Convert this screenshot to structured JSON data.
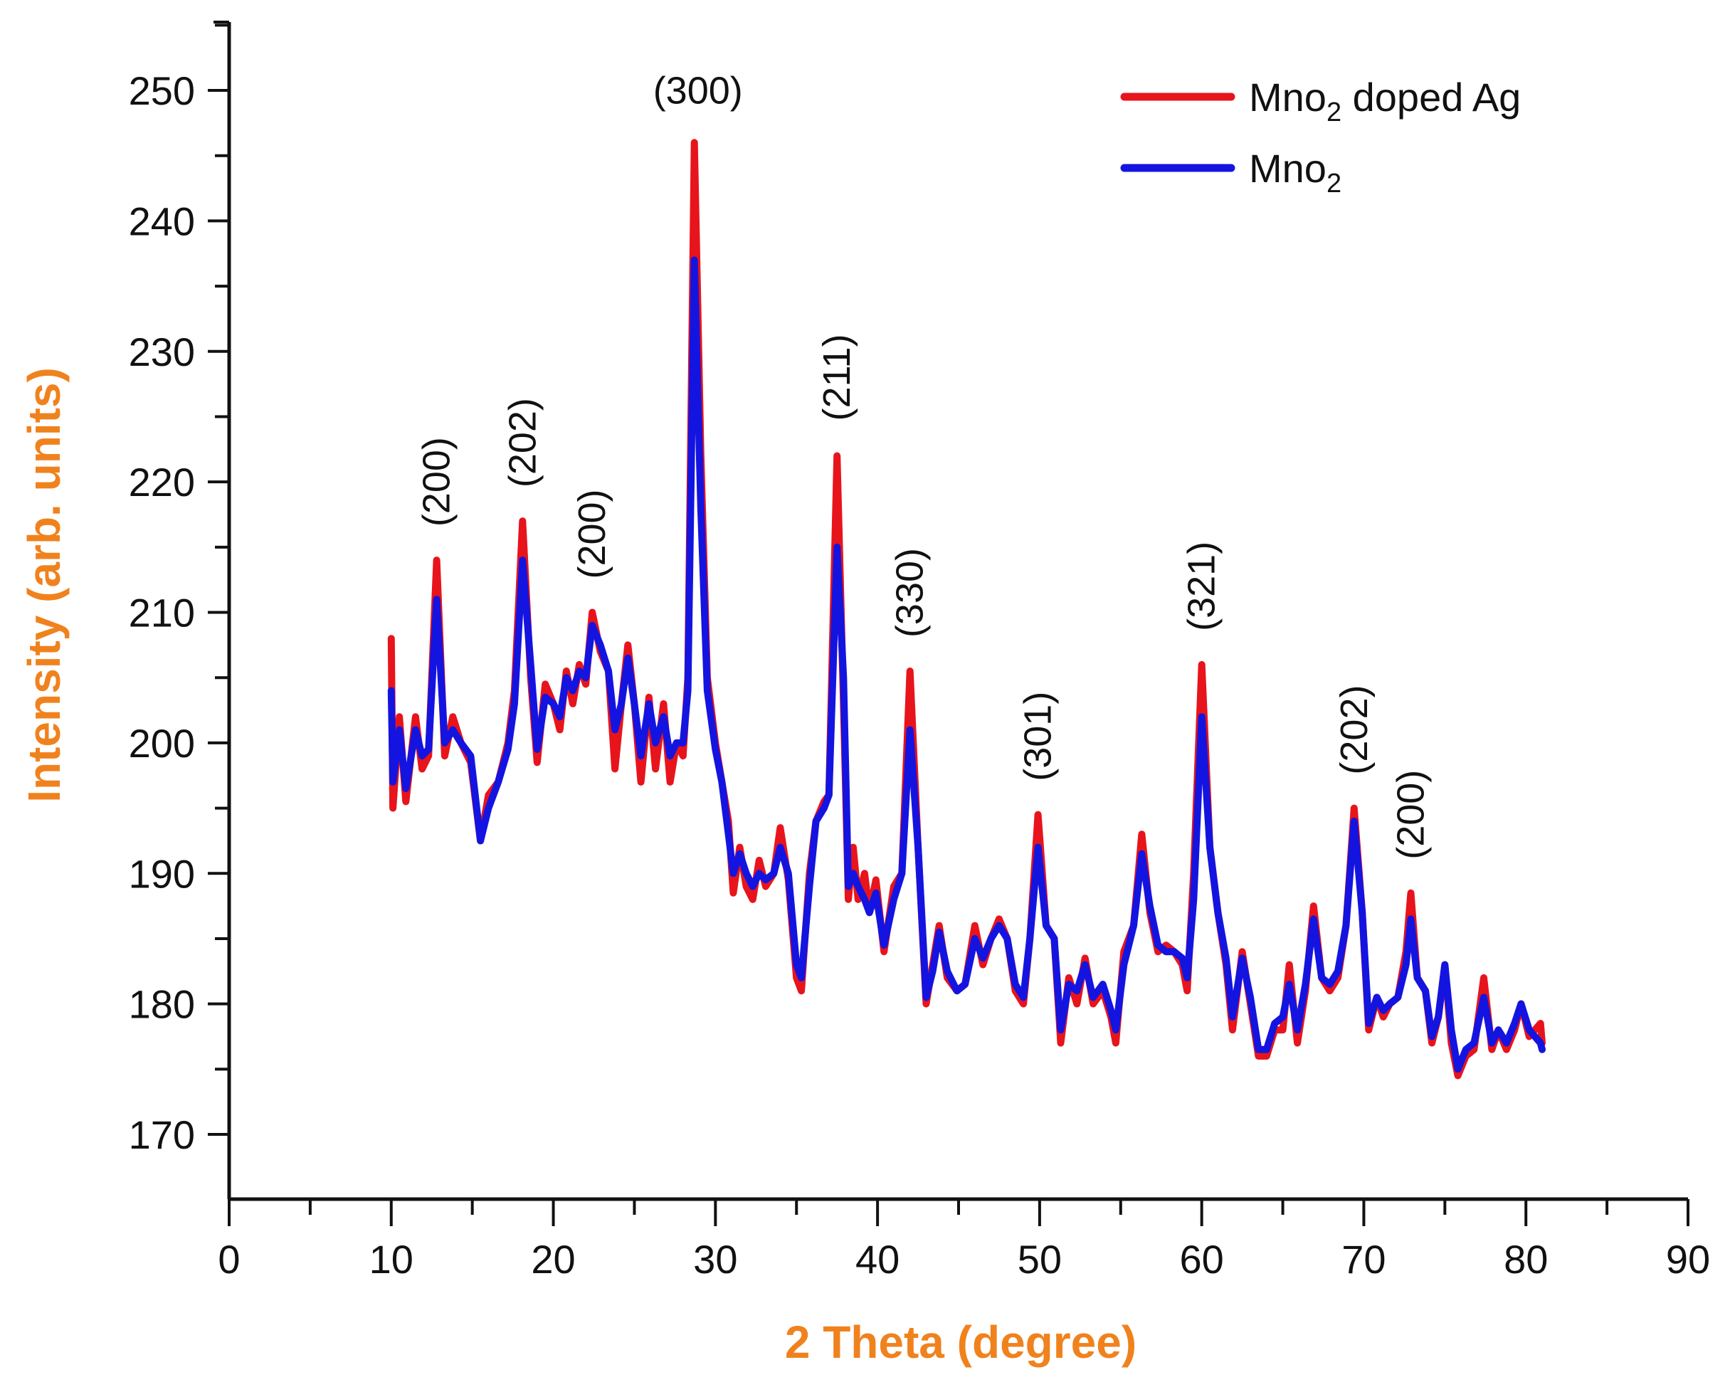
{
  "chart_data": {
    "type": "line",
    "xlabel": "2 Theta (degree)",
    "ylabel": "Intensity (arb. units)",
    "xlim": [
      0,
      90
    ],
    "ylim": [
      165,
      255
    ],
    "xticks": [
      0,
      10,
      20,
      30,
      40,
      50,
      60,
      70,
      80,
      90
    ],
    "yticks": [
      170,
      180,
      190,
      200,
      210,
      220,
      230,
      240,
      250
    ],
    "grid": false,
    "legend_position": "top-right",
    "axis_title_color": "#f0821e",
    "x": [
      10.0,
      10.1,
      10.5,
      10.9,
      11.5,
      11.9,
      12.3,
      12.8,
      13.3,
      13.8,
      14.3,
      14.9,
      15.5,
      16.0,
      16.6,
      17.2,
      17.6,
      18.1,
      18.6,
      19.0,
      19.5,
      20.0,
      20.4,
      20.8,
      21.2,
      21.6,
      22.0,
      22.4,
      22.9,
      23.4,
      23.8,
      24.2,
      24.6,
      25.0,
      25.4,
      25.9,
      26.3,
      26.8,
      27.2,
      27.6,
      28.0,
      28.3,
      28.7,
      29.1,
      29.5,
      30.0,
      30.4,
      30.8,
      31.1,
      31.5,
      31.9,
      32.3,
      32.7,
      33.1,
      33.6,
      34.0,
      34.5,
      35.0,
      35.3,
      35.8,
      36.2,
      36.7,
      37.0,
      37.5,
      37.9,
      38.2,
      38.5,
      38.8,
      39.2,
      39.5,
      39.9,
      40.4,
      41.0,
      41.5,
      42.0,
      42.5,
      43.0,
      43.4,
      43.8,
      44.3,
      44.9,
      45.4,
      46.0,
      46.5,
      47.0,
      47.5,
      48.0,
      48.5,
      49.0,
      49.4,
      49.9,
      50.4,
      50.9,
      51.3,
      51.8,
      52.3,
      52.8,
      53.3,
      53.9,
      54.4,
      54.7,
      55.2,
      55.8,
      56.3,
      56.8,
      57.3,
      57.8,
      58.3,
      58.8,
      59.1,
      59.5,
      60.0,
      60.5,
      61.0,
      61.5,
      61.9,
      62.5,
      63.0,
      63.5,
      64.0,
      64.5,
      65.0,
      65.4,
      65.9,
      66.4,
      66.9,
      67.4,
      67.9,
      68.4,
      68.9,
      69.4,
      69.9,
      70.3,
      70.8,
      71.2,
      71.6,
      72.1,
      72.6,
      72.9,
      73.3,
      73.8,
      74.2,
      74.6,
      75.0,
      75.4,
      75.8,
      76.3,
      76.8,
      77.4,
      77.9,
      78.3,
      78.8,
      79.3,
      79.7,
      80.2,
      80.9,
      81.0
    ],
    "series": [
      {
        "name": "Mno2 doped Ag",
        "color": "#e8141c",
        "values": [
          208,
          195,
          202,
          195.5,
          202,
          198,
          199,
          214,
          199,
          202,
          200,
          198.5,
          192.5,
          196,
          197,
          200,
          204,
          217,
          205,
          198.5,
          204.5,
          203,
          201,
          205.5,
          203,
          206,
          204.5,
          210,
          207,
          205.5,
          198,
          203,
          207.5,
          203,
          197,
          203.5,
          198,
          203,
          197,
          200,
          199,
          205,
          246,
          222,
          205,
          200,
          197,
          194,
          188.5,
          192,
          189,
          188,
          191,
          189,
          190,
          193.5,
          189.5,
          182,
          181,
          190,
          194,
          195.5,
          196,
          222,
          203,
          188,
          192,
          188,
          190,
          187,
          189.5,
          184,
          189,
          190,
          205.5,
          192,
          180,
          183,
          186,
          182,
          181,
          181.5,
          186,
          183,
          185,
          186.5,
          185,
          181,
          180,
          185,
          194.5,
          186,
          185,
          177,
          182,
          180,
          183.5,
          180,
          181,
          179,
          177,
          184,
          186,
          193,
          187,
          184,
          184.5,
          184,
          183,
          181,
          190,
          206,
          192,
          187,
          183,
          178,
          184,
          180,
          176,
          176,
          178,
          178,
          183,
          177,
          181,
          187.5,
          182,
          181,
          182,
          186,
          195,
          187,
          178,
          180.5,
          179,
          180,
          180.5,
          184,
          188.5,
          182,
          181,
          177,
          179,
          183,
          177,
          174.5,
          176,
          176.5,
          182,
          176.5,
          178,
          176.5,
          178,
          180,
          177.5,
          178.5,
          177
        ]
      },
      {
        "name": "Mno2",
        "color": "#1414e0",
        "values": [
          204,
          197,
          201,
          196.5,
          201,
          199,
          199.5,
          211,
          200,
          201,
          200,
          199,
          192.5,
          195,
          197,
          199.5,
          203,
          214,
          206,
          199.5,
          203.5,
          203,
          202,
          205,
          204,
          205.5,
          205,
          209,
          207.5,
          205.5,
          201,
          203,
          206.5,
          203,
          199,
          203,
          200,
          202,
          199,
          200,
          200,
          204,
          237,
          218,
          204,
          199.5,
          197,
          193,
          190,
          191.5,
          190,
          189,
          190,
          189.5,
          190,
          192,
          190,
          183,
          182,
          189,
          194,
          195,
          196,
          215,
          205,
          189,
          190,
          189,
          188,
          187,
          188.5,
          184.5,
          188,
          190,
          201,
          192,
          180.5,
          182.5,
          185.5,
          182.5,
          181,
          181.5,
          185,
          183.5,
          185,
          186,
          185,
          181.5,
          180.5,
          185,
          192,
          186,
          185,
          178,
          181.5,
          181,
          183,
          180.5,
          181.5,
          179.5,
          178,
          183,
          186,
          191.5,
          187.5,
          184.5,
          184,
          184,
          183.5,
          182,
          188,
          202,
          192,
          187,
          183.5,
          179,
          183.5,
          180.5,
          176.5,
          176.5,
          178.5,
          179,
          181.5,
          178,
          181.5,
          186.5,
          182,
          181.5,
          182.5,
          186,
          194,
          187,
          178.5,
          180.5,
          179.5,
          180,
          180.5,
          183,
          186.5,
          182,
          181,
          177.5,
          179,
          183,
          178,
          175,
          176.5,
          177,
          180.5,
          177,
          178,
          177,
          178.5,
          180,
          178,
          177,
          176.5
        ]
      }
    ],
    "legend": [
      {
        "base": "Mno",
        "sub": "2",
        "rest": " doped Ag"
      },
      {
        "base": "Mno",
        "sub": "2",
        "rest": ""
      }
    ],
    "annotations": [
      {
        "text": "(300)",
        "x": 28.7,
        "rotated": false
      },
      {
        "text": "(200)",
        "x": 12.8,
        "rotated": true
      },
      {
        "text": "(202)",
        "x": 18.1,
        "rotated": true
      },
      {
        "text": "(200)",
        "x": 22.4,
        "rotated": true
      },
      {
        "text": "(211)",
        "x": 37.5,
        "rotated": true
      },
      {
        "text": "(330)",
        "x": 42.0,
        "rotated": true
      },
      {
        "text": "(301)",
        "x": 49.9,
        "rotated": true
      },
      {
        "text": "(321)",
        "x": 60.0,
        "rotated": true
      },
      {
        "text": "(202)",
        "x": 69.4,
        "rotated": true
      },
      {
        "text": "(200)",
        "x": 72.9,
        "rotated": true
      }
    ]
  }
}
